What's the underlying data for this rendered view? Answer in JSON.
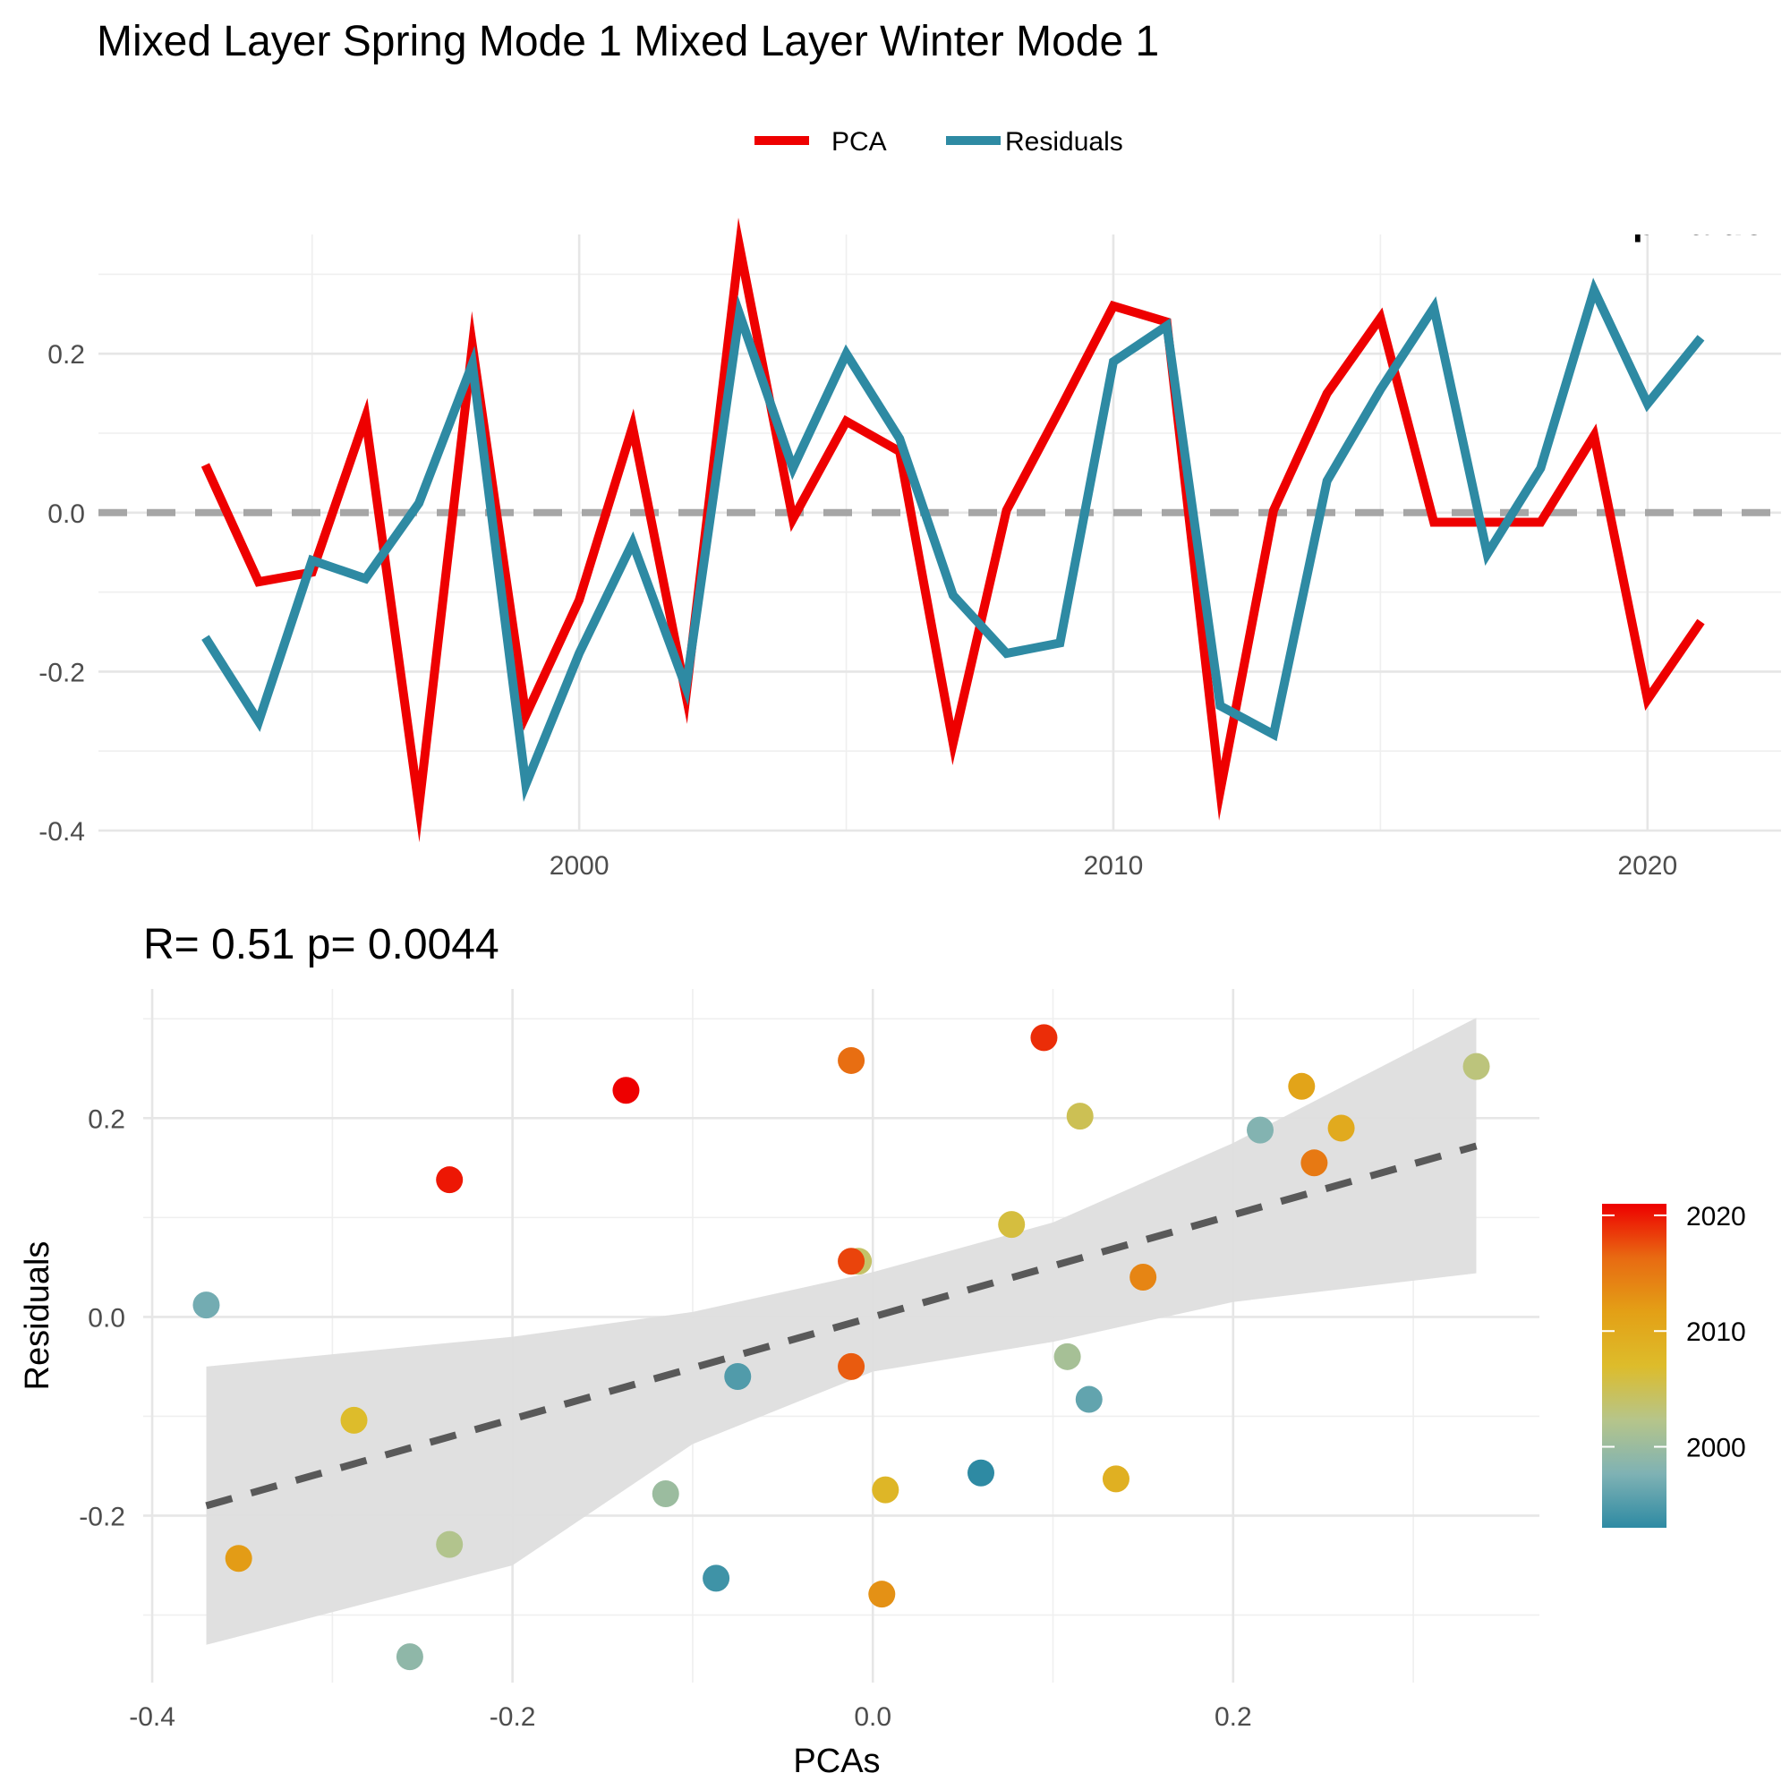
{
  "figure": {
    "title": "Mixed Layer Spring Mode 1 Mixed Layer Winter Mode 1",
    "top_annotation": "p-value: ",
    "scatter_annotation": "R= 0.51  p= 0.0044"
  },
  "legend": {
    "items": [
      {
        "label": "PCA",
        "color": "#ee0000"
      },
      {
        "label": "Residuals",
        "color": "#2e8aa3"
      }
    ]
  },
  "colorbar": {
    "ticks": [
      "2020",
      "2010",
      "2000"
    ],
    "tick_values": [
      2020,
      2010,
      2000
    ],
    "range": [
      1993,
      2021
    ],
    "colors": [
      "#2e8aa3",
      "#7fb2b4",
      "#b6c58a",
      "#ddbc2b",
      "#e3a016",
      "#e86a12",
      "#ee0000"
    ]
  },
  "chart_data": [
    {
      "type": "line",
      "title": "",
      "xlabel": "",
      "ylabel": "",
      "x": [
        1993,
        1994,
        1995,
        1996,
        1997,
        1998,
        1999,
        2000,
        2001,
        2002,
        2003,
        2004,
        2005,
        2006,
        2007,
        2008,
        2009,
        2010,
        2011,
        2012,
        2013,
        2014,
        2015,
        2016,
        2017,
        2018,
        2019,
        2020,
        2021
      ],
      "xticks": [
        "2000",
        "2010",
        "2020"
      ],
      "xtick_values": [
        2000,
        2010,
        2020
      ],
      "yticks": [
        "-0.4",
        "-0.2",
        "0.0",
        "0.2"
      ],
      "ytick_values": [
        -0.4,
        -0.2,
        0.0,
        0.2
      ],
      "xlim": [
        1991,
        2022.5
      ],
      "ylim": [
        -0.4,
        0.35
      ],
      "reference_line": 0,
      "series": [
        {
          "name": "PCA",
          "color": "#ee0000",
          "values": [
            0.06,
            -0.087,
            -0.075,
            0.12,
            -0.37,
            0.21,
            -0.255,
            -0.11,
            0.108,
            -0.23,
            0.335,
            -0.008,
            0.115,
            0.077,
            -0.29,
            0.003,
            0.13,
            0.26,
            0.24,
            -0.35,
            0.003,
            0.15,
            0.245,
            -0.012,
            -0.012,
            -0.012,
            0.097,
            -0.235,
            -0.137
          ]
        },
        {
          "name": "Residuals",
          "color": "#2e8aa3",
          "values": [
            -0.157,
            -0.263,
            -0.06,
            -0.083,
            0.012,
            0.187,
            -0.342,
            -0.177,
            -0.038,
            -0.22,
            0.25,
            0.056,
            0.2,
            0.093,
            -0.104,
            -0.177,
            -0.164,
            0.19,
            0.235,
            -0.243,
            -0.279,
            0.04,
            0.155,
            0.258,
            -0.052,
            0.056,
            0.28,
            0.137,
            0.22
          ]
        }
      ]
    },
    {
      "type": "scatter",
      "title": "R= 0.51  p= 0.0044",
      "xlabel": "PCAs",
      "ylabel": "Residuals",
      "xticks": [
        "-0.4",
        "-0.2",
        "0.0",
        "0.2"
      ],
      "xtick_values": [
        -0.4,
        -0.2,
        0.0,
        0.2
      ],
      "yticks": [
        "-0.2",
        "0.0",
        "0.2"
      ],
      "ytick_values": [
        -0.2,
        0.0,
        0.2
      ],
      "xlim": [
        -0.405,
        0.37
      ],
      "ylim": [
        -0.368,
        0.33
      ],
      "color_by": "year",
      "points": [
        {
          "x": 0.06,
          "y": -0.157,
          "year": 1993
        },
        {
          "x": -0.087,
          "y": -0.263,
          "year": 1994
        },
        {
          "x": -0.075,
          "y": -0.06,
          "year": 1995
        },
        {
          "x": 0.12,
          "y": -0.083,
          "year": 1996
        },
        {
          "x": -0.37,
          "y": 0.012,
          "year": 1997
        },
        {
          "x": 0.215,
          "y": 0.188,
          "year": 1998
        },
        {
          "x": -0.257,
          "y": -0.342,
          "year": 1999
        },
        {
          "x": -0.115,
          "y": -0.178,
          "year": 2000
        },
        {
          "x": 0.108,
          "y": -0.04,
          "year": 2001
        },
        {
          "x": -0.235,
          "y": -0.229,
          "year": 2002
        },
        {
          "x": 0.335,
          "y": 0.252,
          "year": 2003
        },
        {
          "x": -0.008,
          "y": 0.056,
          "year": 2004
        },
        {
          "x": 0.115,
          "y": 0.202,
          "year": 2005
        },
        {
          "x": 0.077,
          "y": 0.093,
          "year": 2006
        },
        {
          "x": -0.288,
          "y": -0.104,
          "year": 2007
        },
        {
          "x": 0.007,
          "y": -0.174,
          "year": 2008
        },
        {
          "x": 0.135,
          "y": -0.163,
          "year": 2009
        },
        {
          "x": 0.26,
          "y": 0.19,
          "year": 2010
        },
        {
          "x": 0.238,
          "y": 0.232,
          "year": 2011
        },
        {
          "x": -0.352,
          "y": -0.243,
          "year": 2012
        },
        {
          "x": 0.005,
          "y": -0.279,
          "year": 2013
        },
        {
          "x": 0.15,
          "y": 0.04,
          "year": 2014
        },
        {
          "x": 0.245,
          "y": 0.155,
          "year": 2015
        },
        {
          "x": -0.012,
          "y": 0.258,
          "year": 2016
        },
        {
          "x": -0.012,
          "y": -0.05,
          "year": 2017
        },
        {
          "x": -0.012,
          "y": 0.056,
          "year": 2018
        },
        {
          "x": 0.095,
          "y": 0.281,
          "year": 2019
        },
        {
          "x": -0.235,
          "y": 0.138,
          "year": 2020
        },
        {
          "x": -0.137,
          "y": 0.228,
          "year": 2021
        }
      ],
      "regression": {
        "x": [
          -0.37,
          0.335
        ],
        "y": [
          -0.19,
          0.172
        ],
        "band_x": [
          -0.37,
          -0.2,
          -0.1,
          0.0,
          0.1,
          0.2,
          0.335
        ],
        "band_upper": [
          -0.05,
          -0.02,
          0.005,
          0.045,
          0.095,
          0.175,
          0.301
        ],
        "band_lower": [
          -0.33,
          -0.25,
          -0.128,
          -0.055,
          -0.025,
          0.015,
          0.044
        ]
      }
    }
  ]
}
